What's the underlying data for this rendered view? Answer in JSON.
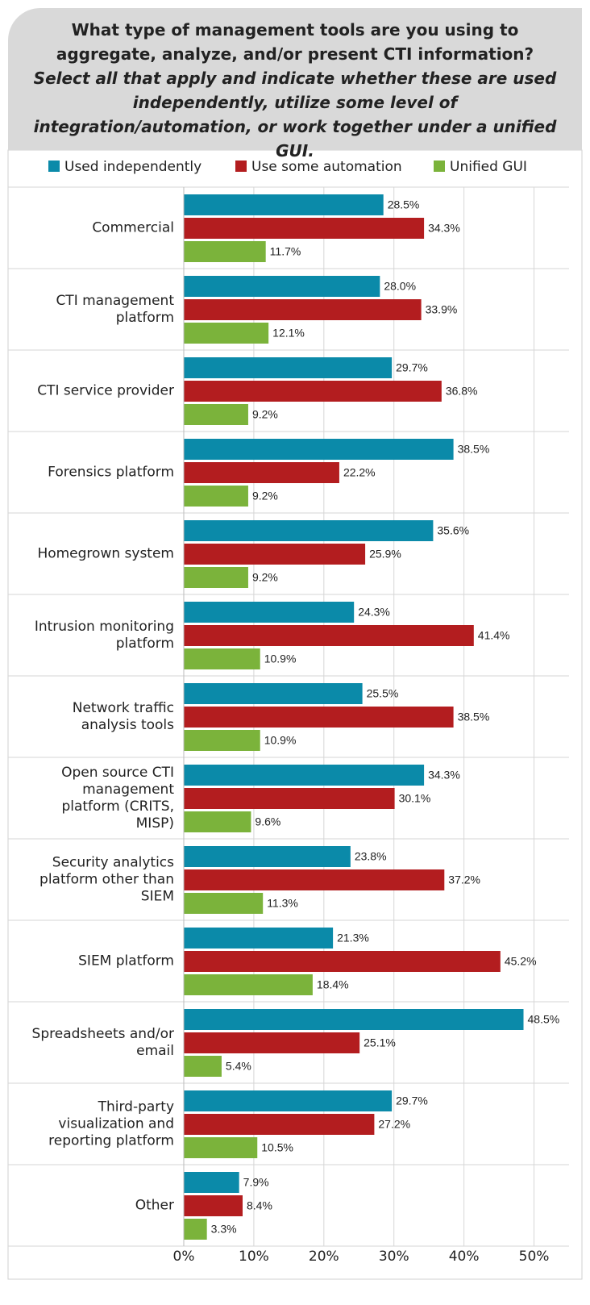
{
  "chart_data": {
    "type": "bar",
    "orientation": "horizontal",
    "title": "What type of management tools are you using to aggregate, analyze, and/or present CTI information?",
    "subtitle": "Select all that apply and indicate whether these are used independently, utilize some level of integration/automation, or work together under a unified GUI.",
    "categories": [
      "Commercial",
      "CTI management platform",
      "CTI service provider",
      "Forensics platform",
      "Homegrown system",
      "Intrusion monitoring platform",
      "Network traffic analysis tools",
      "Open source CTI management platform (CRITS, MISP)",
      "Security analytics platform other than SIEM",
      "SIEM platform",
      "Spreadsheets and/or email",
      "Third-party visualization and reporting platform",
      "Other"
    ],
    "series": [
      {
        "name": "Used independently",
        "color": "#0b8aa9",
        "values": [
          28.5,
          28.0,
          29.7,
          38.5,
          35.6,
          24.3,
          25.5,
          34.3,
          23.8,
          21.3,
          48.5,
          29.7,
          7.9
        ],
        "value_labels": [
          "28.5%",
          "28.0%",
          "29.7%",
          "38.5%",
          "35.6%",
          "24.3%",
          "25.5%",
          "34.3%",
          "23.8%",
          "21.3%",
          "48.5%",
          "29.7%",
          "7.9%"
        ]
      },
      {
        "name": "Use some automation",
        "color": "#b31d1f",
        "values": [
          34.3,
          33.9,
          36.8,
          22.2,
          25.9,
          41.4,
          38.5,
          30.1,
          37.2,
          45.2,
          25.1,
          27.2,
          8.4
        ],
        "value_labels": [
          "34.3%",
          "33.9%",
          "36.8%",
          "22.2%",
          "25.9%",
          "41.4%",
          "38.5%",
          "30.1%",
          "37.2%",
          "45.2%",
          "25.1%",
          "27.2%",
          "8.4%"
        ]
      },
      {
        "name": "Unified GUI",
        "color": "#7bb33b",
        "values": [
          11.7,
          12.1,
          9.2,
          9.2,
          9.2,
          10.9,
          10.9,
          9.6,
          11.3,
          18.4,
          5.4,
          10.5,
          3.3
        ],
        "value_labels": [
          "11.7%",
          "12.1%",
          "9.2%",
          "9.2%",
          "9.2%",
          "10.9%",
          "10.9%",
          "9.6%",
          "11.3%",
          "18.4%",
          "5.4%",
          "10.5%",
          "3.3%"
        ]
      }
    ],
    "xlim": [
      0,
      55
    ],
    "xticks": [
      {
        "value": 0,
        "label": "0%"
      },
      {
        "value": 10,
        "label": "10%"
      },
      {
        "value": 20,
        "label": "20%"
      },
      {
        "value": 30,
        "label": "30%"
      },
      {
        "value": 40,
        "label": "40%"
      },
      {
        "value": 50,
        "label": "50%"
      }
    ],
    "grid": true,
    "legend": "top"
  }
}
